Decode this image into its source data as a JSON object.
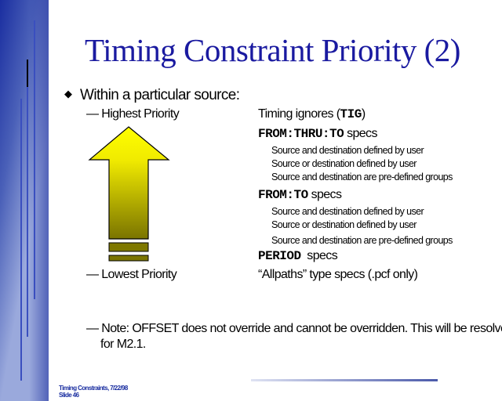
{
  "title": "Timing Constraint Priority (2)",
  "bullet": "Within a particular source:",
  "left": {
    "highest": "— Highest Priority",
    "lowest": "— Lowest Priority"
  },
  "right": {
    "tig_pre": "Timing ignores (",
    "tig_code": "TIG",
    "tig_post": ")",
    "fromthru_code": "FROM:THRU:TO",
    "fromthru_post": " specs",
    "fromthru_items": [
      "Source and destination defined by user",
      "Source or destination defined by user",
      "Source and destination are pre-defined groups"
    ],
    "fromto_code": "FROM:TO",
    "fromto_post": " specs",
    "fromto_items": [
      "Source and destination defined by user",
      "Source or destination defined by user",
      "Source and destination are pre-defined groups"
    ],
    "period_code": "PERIOD",
    "period_post": "  specs",
    "allpaths": "“Allpaths” type specs (.pcf only)"
  },
  "note": {
    "line1": "— Note: OFFSET does not override and cannot be overridden. This will be resolved",
    "line2": "for M2.1."
  },
  "footer": {
    "line1": "Timing Constraints, 7/22/98",
    "line2": "Slide 46"
  },
  "colors": {
    "title": "#1a1aa0",
    "arrow_top": "#ffff00",
    "arrow_bottom": "#7a7400"
  }
}
